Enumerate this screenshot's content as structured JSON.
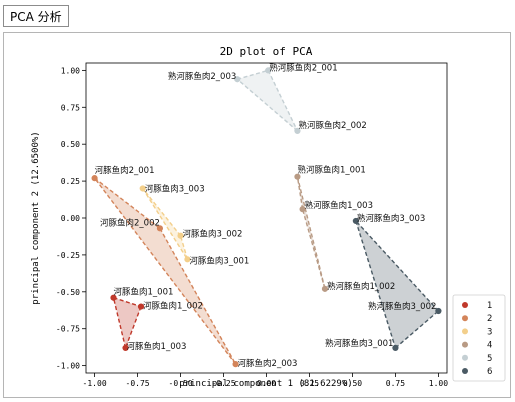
{
  "tab": {
    "label": "PCA 分析"
  },
  "chart_data": {
    "type": "scatter",
    "title": "2D plot of PCA",
    "xlabel": "principal component 1 (81.6229%)",
    "ylabel": "principal component 2 (12.6500%)",
    "xlim": [
      -1.05,
      1.05
    ],
    "ylim": [
      -1.05,
      1.05
    ],
    "xticks": [
      "-1.00",
      "-0.75",
      "-0.50",
      "-0.25",
      "0.00",
      "0.25",
      "0.50",
      "0.75",
      "1.00"
    ],
    "yticks": [
      "1.00",
      "0.75",
      "0.50",
      "0.25",
      "0.00",
      "-0.25",
      "-0.50",
      "-0.75",
      "-1.00"
    ],
    "xtick_values": [
      -1,
      -0.75,
      -0.5,
      -0.25,
      0,
      0.25,
      0.5,
      0.75,
      1
    ],
    "ytick_values": [
      1,
      0.75,
      0.5,
      0.25,
      0,
      -0.25,
      -0.5,
      -0.75,
      -1
    ],
    "legend_position": "right",
    "grid": false,
    "groups": [
      {
        "name": "1",
        "color": "#c0392b",
        "points": [
          {
            "label": "河豚鱼肉1_001",
            "x": -0.89,
            "y": -0.54
          },
          {
            "label": "河豚鱼肉1_002",
            "x": -0.73,
            "y": -0.6
          },
          {
            "label": "河豚鱼肉1_003",
            "x": -0.82,
            "y": -0.88
          }
        ]
      },
      {
        "name": "2",
        "color": "#d3845a",
        "points": [
          {
            "label": "河豚鱼肉2_001",
            "x": -1.0,
            "y": 0.27
          },
          {
            "label": "河豚鱼肉2_002",
            "x": -0.62,
            "y": -0.07
          },
          {
            "label": "河豚鱼肉2_003",
            "x": -0.18,
            "y": -0.99
          }
        ]
      },
      {
        "name": "3",
        "color": "#f3cf8b",
        "points": [
          {
            "label": "河豚鱼肉3_001",
            "x": -0.46,
            "y": -0.28
          },
          {
            "label": "河豚鱼肉3_002",
            "x": -0.5,
            "y": -0.12
          },
          {
            "label": "河豚鱼肉3_003",
            "x": -0.72,
            "y": 0.2
          }
        ]
      },
      {
        "name": "4",
        "color": "#b89a84",
        "points": [
          {
            "label": "熟河豚鱼肉1_001",
            "x": 0.18,
            "y": 0.28
          },
          {
            "label": "熟河豚鱼肉1_002",
            "x": 0.34,
            "y": -0.48
          },
          {
            "label": "熟河豚鱼肉1_003",
            "x": 0.21,
            "y": 0.06
          }
        ]
      },
      {
        "name": "5",
        "color": "#c4cfd3",
        "points": [
          {
            "label": "熟河豚鱼肉2_001",
            "x": 0.01,
            "y": 1.0
          },
          {
            "label": "熟河豚鱼肉2_002",
            "x": 0.18,
            "y": 0.59
          },
          {
            "label": "熟河豚鱼肉2_003",
            "x": -0.17,
            "y": 0.94
          }
        ]
      },
      {
        "name": "6",
        "color": "#4a5a64",
        "points": [
          {
            "label": "熟河豚鱼肉3_001",
            "x": 0.75,
            "y": -0.88
          },
          {
            "label": "熟河豚鱼肉3_002",
            "x": 1.0,
            "y": -0.63
          },
          {
            "label": "熟河豚鱼肉3_003",
            "x": 0.52,
            "y": -0.02
          }
        ]
      }
    ]
  }
}
